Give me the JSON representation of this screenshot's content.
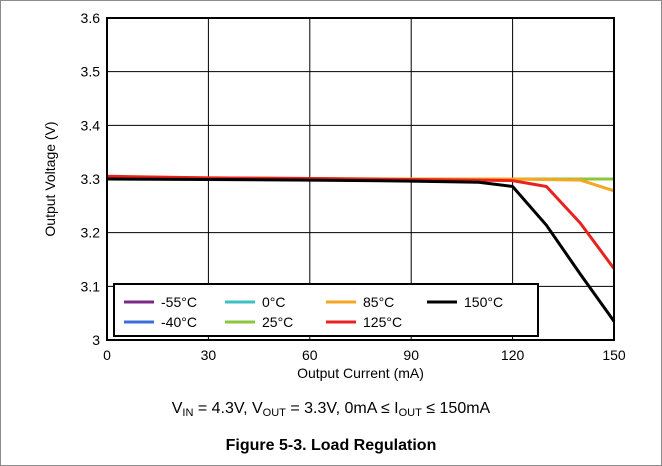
{
  "chart_data": {
    "type": "line",
    "xlabel": "Output Current (mA)",
    "ylabel": "Output Voltage (V)",
    "xlim": [
      0,
      150
    ],
    "ylim": [
      3.0,
      3.6
    ],
    "xticks": [
      "0",
      "30",
      "60",
      "90",
      "120",
      "150"
    ],
    "yticks": [
      "3",
      "3.1",
      "3.2",
      "3.3",
      "3.4",
      "3.5",
      "3.6"
    ],
    "grid": true,
    "legend_position": "bottom-left",
    "series": [
      {
        "name": "-55°C",
        "color": "#7b2a86",
        "x": [
          0,
          30,
          60,
          90,
          120,
          150
        ],
        "y": [
          3.3,
          3.3,
          3.3,
          3.3,
          3.3,
          3.3
        ]
      },
      {
        "name": "-40°C",
        "color": "#3b6fd8",
        "x": [
          0,
          30,
          60,
          90,
          120,
          150
        ],
        "y": [
          3.3,
          3.3,
          3.3,
          3.3,
          3.3,
          3.3
        ]
      },
      {
        "name": "0°C",
        "color": "#3ec1c3",
        "x": [
          0,
          30,
          60,
          90,
          120,
          150
        ],
        "y": [
          3.301,
          3.3,
          3.3,
          3.3,
          3.3,
          3.3
        ]
      },
      {
        "name": "25°C",
        "color": "#8cc63f",
        "x": [
          0,
          30,
          60,
          90,
          120,
          150
        ],
        "y": [
          3.302,
          3.301,
          3.3,
          3.3,
          3.3,
          3.3
        ]
      },
      {
        "name": "85°C",
        "color": "#f5a623",
        "x": [
          0,
          30,
          60,
          90,
          120,
          140,
          150
        ],
        "y": [
          3.304,
          3.302,
          3.301,
          3.3,
          3.3,
          3.298,
          3.278
        ]
      },
      {
        "name": "125°C",
        "color": "#e8221e",
        "x": [
          0,
          30,
          60,
          90,
          120,
          130,
          140,
          150
        ],
        "y": [
          3.305,
          3.302,
          3.301,
          3.299,
          3.297,
          3.286,
          3.218,
          3.133
        ]
      },
      {
        "name": "150°C",
        "color": "#000000",
        "x": [
          0,
          30,
          60,
          90,
          110,
          120,
          130,
          140,
          150
        ],
        "y": [
          3.3,
          3.299,
          3.298,
          3.296,
          3.294,
          3.286,
          3.214,
          3.123,
          3.035
        ]
      }
    ]
  },
  "conditions": {
    "vin_sym": "V",
    "vin_sub": "IN",
    "vin_val": " = 4.3V, ",
    "vout_sym": "V",
    "vout_sub": "OUT",
    "vout_val": " = 3.3V, 0mA ≤ ",
    "iout_sym": "I",
    "iout_sub": "OUT",
    "iout_val": " ≤ 150mA"
  },
  "caption": "Figure 5-3. Load Regulation"
}
